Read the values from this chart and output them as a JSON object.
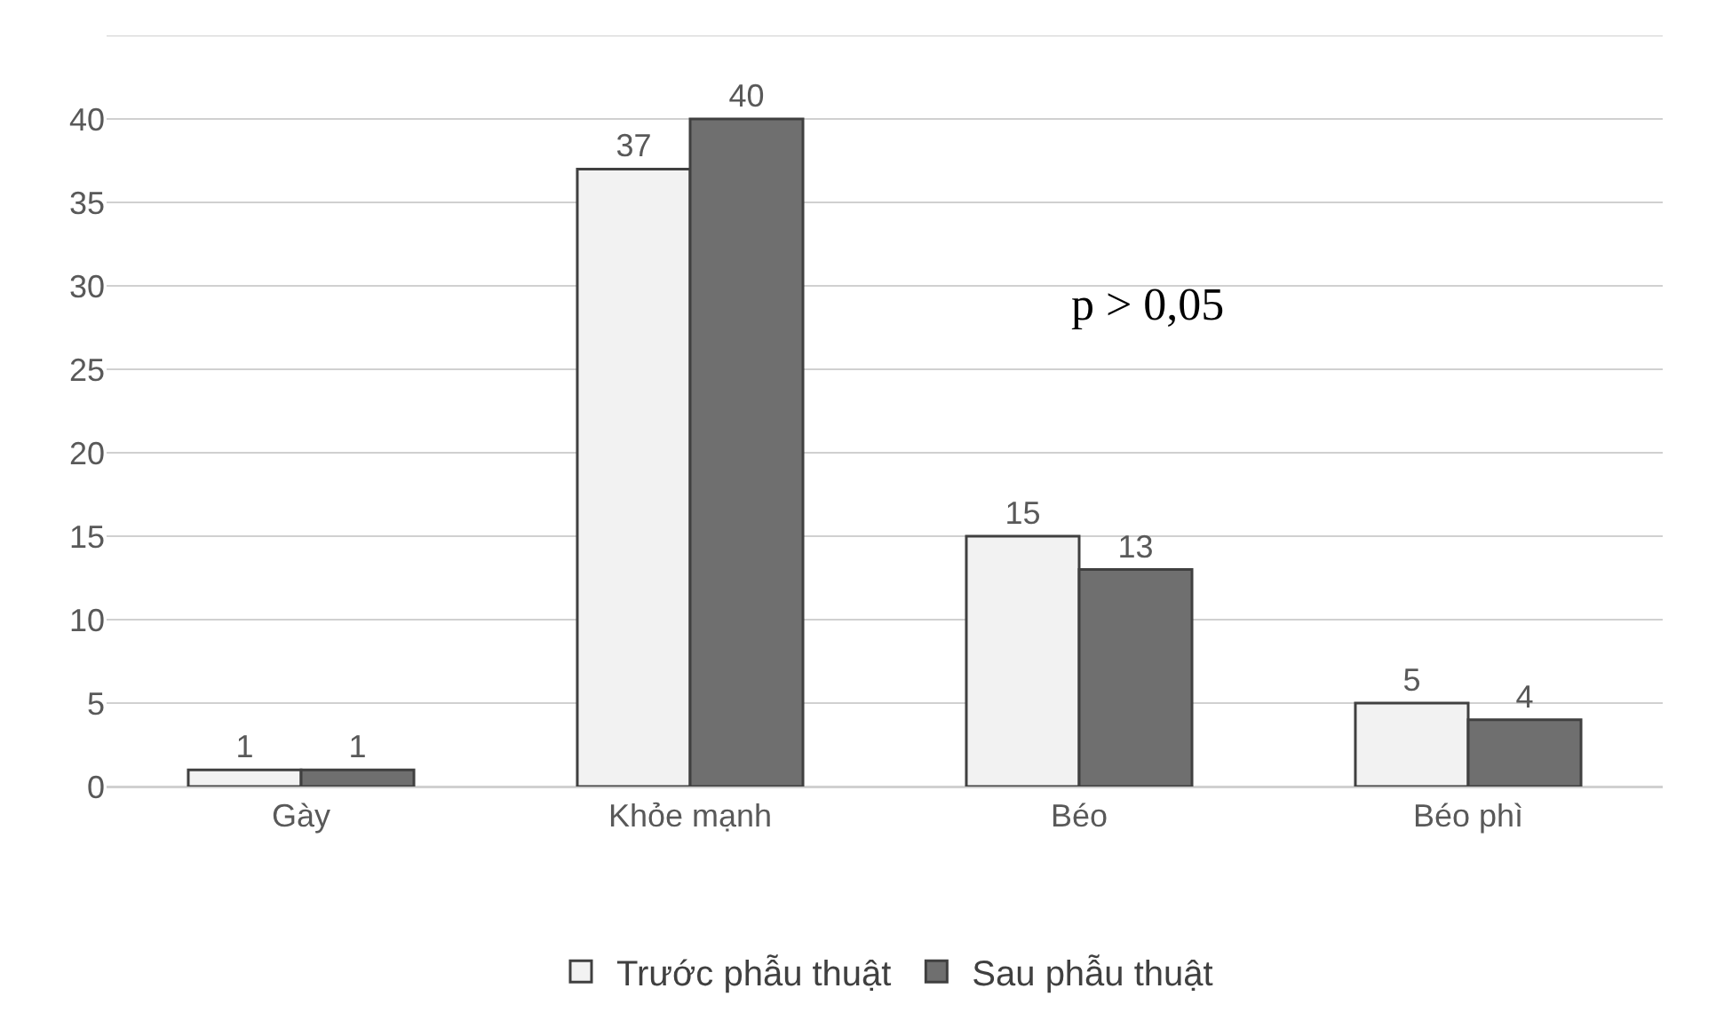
{
  "chart_data": {
    "type": "bar",
    "categories": [
      "Gày",
      "Khỏe mạnh",
      "Béo",
      "Béo phì"
    ],
    "series": [
      {
        "name": "Trước phẫu thuật",
        "color": "#f2f2f2",
        "values": [
          1,
          37,
          15,
          5
        ]
      },
      {
        "name": "Sau phẫu thuật",
        "color": "#6f6f6f",
        "values": [
          1,
          40,
          13,
          4
        ]
      }
    ],
    "ylim": [
      0,
      45
    ],
    "yticks": [
      0,
      5,
      10,
      15,
      20,
      25,
      30,
      35,
      40,
      {
        "value": 45,
        "label": null
      }
    ],
    "grid": "y",
    "legend": "bottom",
    "data_labels": true,
    "annotations": [
      "p > 0,05"
    ]
  }
}
